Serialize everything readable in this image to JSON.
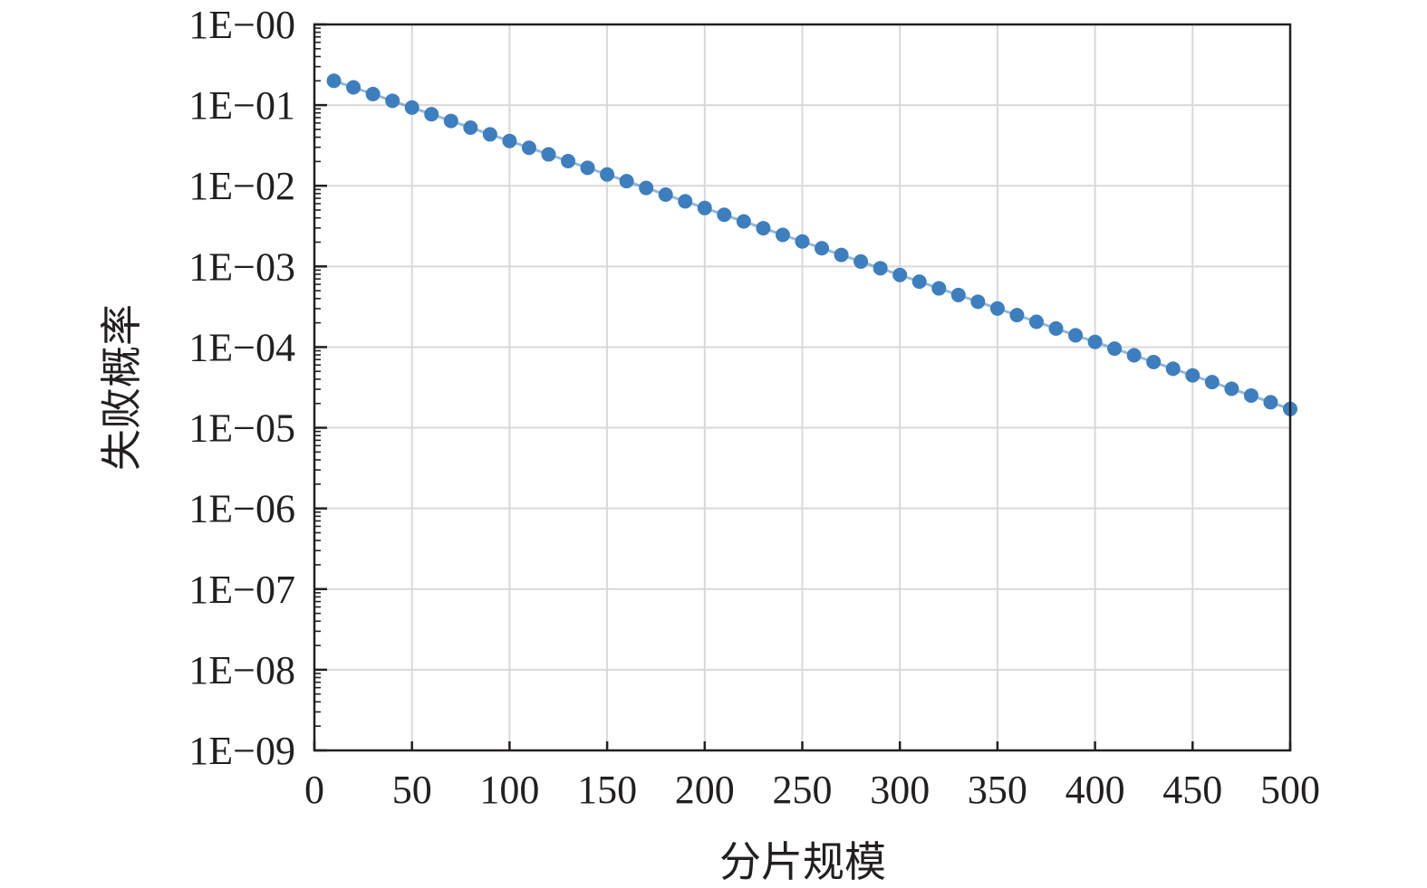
{
  "chart_data": {
    "type": "scatter",
    "title": "",
    "xlabel": "分片规模",
    "ylabel": "失败概率",
    "xlim": [
      0,
      500
    ],
    "ylim_log10": [
      -9,
      0
    ],
    "y_scale": "log",
    "grid": true,
    "x_ticks": [
      "0",
      "50",
      "100",
      "150",
      "200",
      "250",
      "300",
      "350",
      "400",
      "450",
      "500"
    ],
    "y_ticks": [
      "1E−00",
      "1E−01",
      "1E−02",
      "1E−03",
      "1E−04",
      "1E−05",
      "1E−06",
      "1E−07",
      "1E−08",
      "1E−09"
    ],
    "series": [
      {
        "color": "#3d7ebf",
        "x": [
          10,
          20,
          30,
          40,
          50,
          60,
          70,
          80,
          90,
          100,
          110,
          120,
          130,
          140,
          150,
          160,
          170,
          180,
          190,
          200,
          210,
          220,
          230,
          240,
          250,
          260,
          270,
          280,
          290,
          300,
          310,
          320,
          330,
          340,
          350,
          360,
          370,
          380,
          390,
          400,
          410,
          420,
          430,
          440,
          450,
          460,
          470,
          480,
          490,
          500
        ],
        "y": [
          0.2,
          0.166,
          0.137,
          0.113,
          0.0933,
          0.0771,
          0.0637,
          0.0526,
          0.0434,
          0.0359,
          0.0296,
          0.0245,
          0.0202,
          0.0167,
          0.0138,
          0.0114,
          0.00941,
          0.00777,
          0.00641,
          0.0053,
          0.00437,
          0.00361,
          0.00298,
          0.00246,
          0.00204,
          0.00168,
          0.00139,
          0.00115,
          0.00095,
          0.000784,
          0.000648,
          0.000535,
          0.000442,
          0.000365,
          0.000301,
          0.000249,
          0.000206,
          0.00017,
          0.00014,
          0.000116,
          9.58e-05,
          7.91e-05,
          6.53e-05,
          5.39e-05,
          4.45e-05,
          3.68e-05,
          3.04e-05,
          2.51e-05,
          2.07e-05,
          1.71e-05
        ]
      }
    ]
  }
}
